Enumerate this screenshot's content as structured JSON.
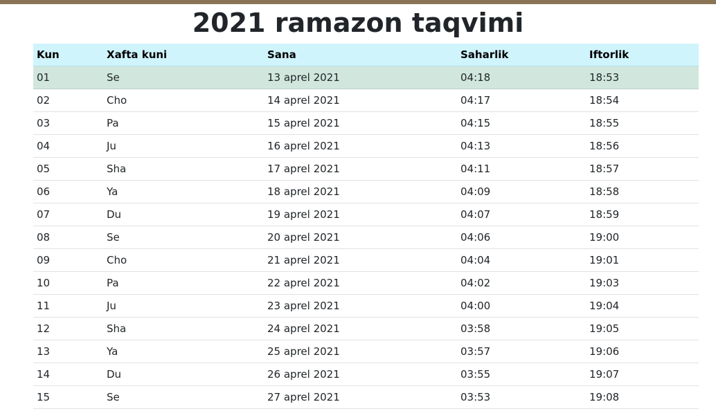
{
  "page": {
    "title": "2021 ramazon taqvimi"
  },
  "colors": {
    "top_bar": "#8b7355",
    "header_bg": "#cff4fc",
    "highlight_row_bg": "#d1e7dd"
  },
  "table": {
    "headers": {
      "kun": "Kun",
      "xafta_kuni": "Xafta kuni",
      "sana": "Sana",
      "saharlik": "Saharlik",
      "iftorlik": "Iftorlik"
    },
    "rows": [
      {
        "kun": "01",
        "xafta_kuni": "Se",
        "sana": "13 aprel 2021",
        "saharlik": "04:18",
        "iftorlik": "18:53"
      },
      {
        "kun": "02",
        "xafta_kuni": "Cho",
        "sana": "14 aprel 2021",
        "saharlik": "04:17",
        "iftorlik": "18:54"
      },
      {
        "kun": "03",
        "xafta_kuni": "Pa",
        "sana": "15 aprel 2021",
        "saharlik": "04:15",
        "iftorlik": "18:55"
      },
      {
        "kun": "04",
        "xafta_kuni": "Ju",
        "sana": "16 aprel 2021",
        "saharlik": "04:13",
        "iftorlik": "18:56"
      },
      {
        "kun": "05",
        "xafta_kuni": "Sha",
        "sana": "17 aprel 2021",
        "saharlik": "04:11",
        "iftorlik": "18:57"
      },
      {
        "kun": "06",
        "xafta_kuni": "Ya",
        "sana": "18 aprel 2021",
        "saharlik": "04:09",
        "iftorlik": "18:58"
      },
      {
        "kun": "07",
        "xafta_kuni": "Du",
        "sana": "19 aprel 2021",
        "saharlik": "04:07",
        "iftorlik": "18:59"
      },
      {
        "kun": "08",
        "xafta_kuni": "Se",
        "sana": "20 aprel 2021",
        "saharlik": "04:06",
        "iftorlik": "19:00"
      },
      {
        "kun": "09",
        "xafta_kuni": "Cho",
        "sana": "21 aprel 2021",
        "saharlik": "04:04",
        "iftorlik": "19:01"
      },
      {
        "kun": "10",
        "xafta_kuni": "Pa",
        "sana": "22 aprel 2021",
        "saharlik": "04:02",
        "iftorlik": "19:03"
      },
      {
        "kun": "11",
        "xafta_kuni": "Ju",
        "sana": "23 aprel 2021",
        "saharlik": "04:00",
        "iftorlik": "19:04"
      },
      {
        "kun": "12",
        "xafta_kuni": "Sha",
        "sana": "24 aprel 2021",
        "saharlik": "03:58",
        "iftorlik": "19:05"
      },
      {
        "kun": "13",
        "xafta_kuni": "Ya",
        "sana": "25 aprel 2021",
        "saharlik": "03:57",
        "iftorlik": "19:06"
      },
      {
        "kun": "14",
        "xafta_kuni": "Du",
        "sana": "26 aprel 2021",
        "saharlik": "03:55",
        "iftorlik": "19:07"
      },
      {
        "kun": "15",
        "xafta_kuni": "Se",
        "sana": "27 aprel 2021",
        "saharlik": "03:53",
        "iftorlik": "19:08"
      }
    ]
  }
}
